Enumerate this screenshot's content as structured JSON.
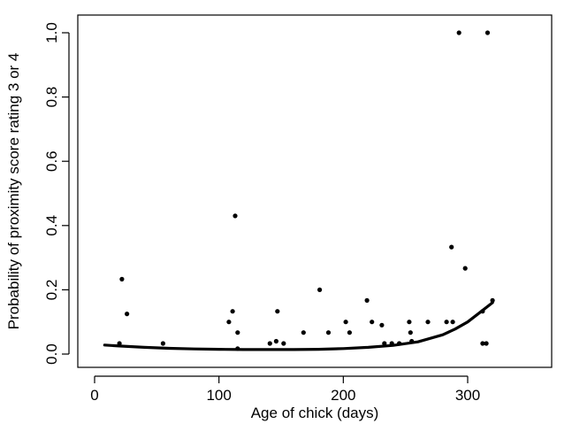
{
  "chart_data": {
    "type": "scatter",
    "title": "",
    "xlabel": "Age of chick (days)",
    "ylabel": "Probability of proximity score rating 3 or 4",
    "xlim": [
      0,
      370
    ],
    "ylim": [
      -0.02,
      1.04
    ],
    "xticks": [
      0,
      100,
      200,
      300
    ],
    "xtick_labels": [
      "0",
      "100",
      "200",
      "300"
    ],
    "yticks": [
      0.0,
      0.2,
      0.4,
      0.6,
      0.8,
      1.0
    ],
    "ytick_labels": [
      "0.0",
      "0.2",
      "0.4",
      "0.6",
      "0.8",
      "1.0"
    ],
    "grid": false,
    "legend": "none",
    "series": [
      {
        "kind": "points",
        "color": "#000000",
        "x": [
          20,
          22,
          26,
          55,
          108,
          111,
          113,
          115,
          115,
          141,
          146,
          147,
          152,
          168,
          181,
          188,
          202,
          205,
          219,
          223,
          231,
          233,
          239,
          245,
          253,
          254,
          255,
          268,
          283,
          287,
          288,
          293,
          298,
          312,
          312,
          315,
          316,
          320
        ],
        "y": [
          0.033,
          0.233,
          0.125,
          0.033,
          0.1,
          0.133,
          0.43,
          0.067,
          0.017,
          0.033,
          0.04,
          0.133,
          0.033,
          0.067,
          0.2,
          0.067,
          0.1,
          0.067,
          0.167,
          0.1,
          0.09,
          0.033,
          0.033,
          0.033,
          0.1,
          0.067,
          0.04,
          0.1,
          0.1,
          0.333,
          0.1,
          1.0,
          0.267,
          0.133,
          0.033,
          0.033,
          1.0,
          0.167
        ]
      },
      {
        "kind": "curve",
        "color": "#000000",
        "x": [
          8,
          20,
          40,
          60,
          80,
          100,
          120,
          140,
          160,
          180,
          200,
          220,
          240,
          260,
          280,
          290,
          300,
          310,
          320
        ],
        "y": [
          0.028,
          0.025,
          0.021,
          0.018,
          0.016,
          0.015,
          0.014,
          0.014,
          0.014,
          0.015,
          0.017,
          0.021,
          0.027,
          0.038,
          0.06,
          0.078,
          0.1,
          0.13,
          0.16
        ]
      }
    ]
  }
}
